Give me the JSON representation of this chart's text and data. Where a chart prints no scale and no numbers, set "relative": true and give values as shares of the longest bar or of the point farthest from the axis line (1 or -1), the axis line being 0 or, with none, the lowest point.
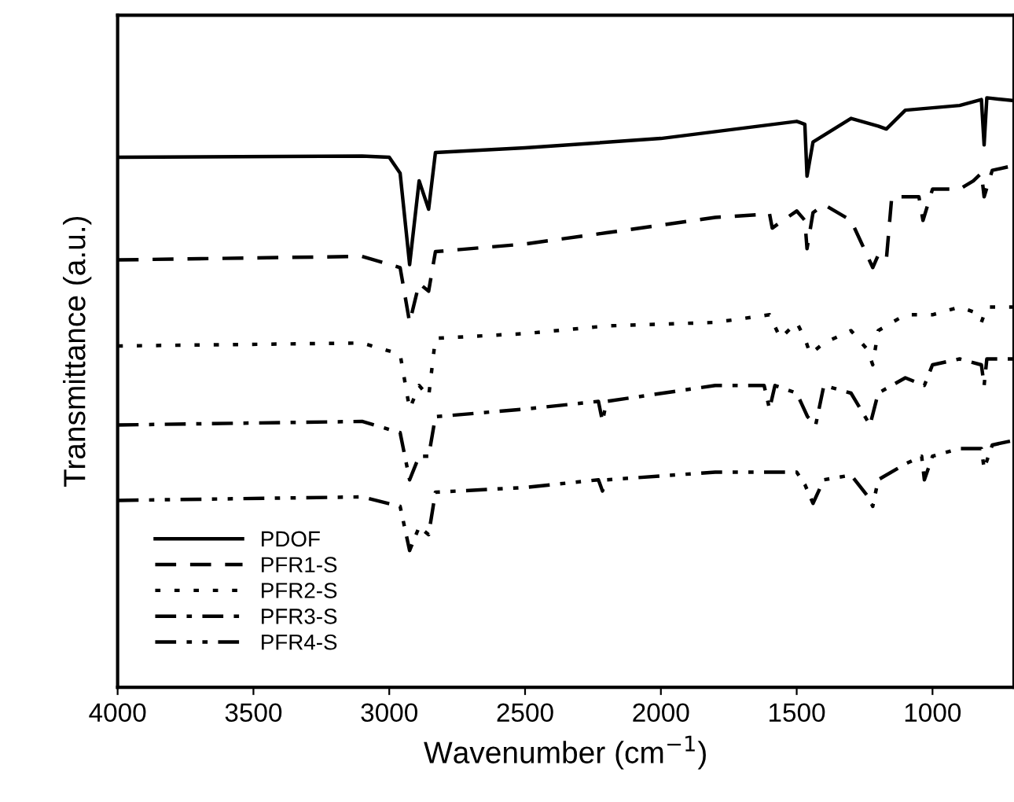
{
  "chart_data": {
    "type": "line",
    "relative": true,
    "xlabel": "Wavenumber (cm$^{−1}$)",
    "ylabel": "Transmittance (a.u.)",
    "xlim": [
      4000,
      700
    ],
    "xticks": [
      4000,
      3500,
      3000,
      2500,
      2000,
      1500,
      1000
    ],
    "tick_labels": "x",
    "grid": false,
    "legend": "bottom left",
    "marker": "none",
    "series": [
      {
        "name": "PDOF",
        "color": "#000000",
        "line_style": "solid",
        "x": [
          4000,
          3100,
          3000,
          2960,
          2925,
          2890,
          2855,
          2830,
          2500,
          2000,
          1500,
          1470,
          1462,
          1440,
          1300,
          1200,
          1170,
          1100,
          900,
          820,
          810,
          800,
          700
        ],
        "values": [
          0.899,
          0.901,
          0.899,
          0.872,
          0.717,
          0.859,
          0.811,
          0.907,
          0.915,
          0.931,
          0.96,
          0.955,
          0.867,
          0.925,
          0.965,
          0.952,
          0.947,
          0.979,
          0.987,
          0.997,
          0.92,
          1.0,
          0.995
        ]
      },
      {
        "name": "PFR1-S",
        "color": "#000000",
        "line_style": "dashed",
        "x": [
          4000,
          3100,
          2960,
          2925,
          2890,
          2855,
          2830,
          2500,
          2200,
          1800,
          1600,
          1590,
          1500,
          1470,
          1462,
          1440,
          1400,
          1300,
          1260,
          1220,
          1200,
          1170,
          1150,
          1050,
          1035,
          1000,
          900,
          850,
          820,
          810,
          780,
          700
        ],
        "values": [
          0.725,
          0.731,
          0.712,
          0.619,
          0.685,
          0.672,
          0.739,
          0.752,
          0.771,
          0.797,
          0.803,
          0.779,
          0.808,
          0.792,
          0.744,
          0.805,
          0.819,
          0.792,
          0.752,
          0.712,
          0.733,
          0.725,
          0.832,
          0.832,
          0.792,
          0.845,
          0.845,
          0.859,
          0.872,
          0.832,
          0.877,
          0.885
        ]
      },
      {
        "name": "PFR2-S",
        "color": "#000000",
        "line_style": "dotted",
        "x": [
          4000,
          3100,
          2960,
          2925,
          2890,
          2855,
          2830,
          2500,
          2200,
          1800,
          1600,
          1560,
          1500,
          1470,
          1450,
          1400,
          1300,
          1240,
          1220,
          1200,
          1100,
          1000,
          900,
          850,
          820,
          800,
          700
        ],
        "values": [
          0.579,
          0.584,
          0.565,
          0.472,
          0.512,
          0.493,
          0.592,
          0.6,
          0.613,
          0.619,
          0.632,
          0.592,
          0.619,
          0.592,
          0.565,
          0.584,
          0.605,
          0.573,
          0.547,
          0.605,
          0.632,
          0.632,
          0.645,
          0.637,
          0.619,
          0.645,
          0.645
        ]
      },
      {
        "name": "PFR3-S",
        "color": "#000000",
        "line_style": "dashdot",
        "x": [
          4000,
          3100,
          2960,
          2925,
          2890,
          2855,
          2830,
          2500,
          2230,
          2215,
          2200,
          1800,
          1620,
          1600,
          1580,
          1500,
          1460,
          1430,
          1400,
          1300,
          1230,
          1200,
          1100,
          1030,
          1000,
          900,
          820,
          810,
          800,
          700
        ],
        "values": [
          0.445,
          0.451,
          0.432,
          0.352,
          0.392,
          0.392,
          0.459,
          0.472,
          0.485,
          0.451,
          0.485,
          0.512,
          0.512,
          0.472,
          0.512,
          0.499,
          0.459,
          0.445,
          0.512,
          0.499,
          0.445,
          0.499,
          0.525,
          0.512,
          0.547,
          0.557,
          0.547,
          0.512,
          0.557,
          0.557
        ]
      },
      {
        "name": "PFR4-S",
        "color": "#000000",
        "line_style": "dashdotdot",
        "x": [
          4000,
          3100,
          2960,
          2925,
          2890,
          2855,
          2830,
          2500,
          2230,
          2215,
          2200,
          1800,
          1500,
          1470,
          1440,
          1400,
          1300,
          1240,
          1220,
          1200,
          1100,
          1040,
          1030,
          1000,
          900,
          820,
          810,
          780,
          700
        ],
        "values": [
          0.317,
          0.323,
          0.307,
          0.232,
          0.272,
          0.259,
          0.331,
          0.339,
          0.352,
          0.333,
          0.352,
          0.365,
          0.365,
          0.344,
          0.312,
          0.352,
          0.36,
          0.325,
          0.307,
          0.352,
          0.379,
          0.392,
          0.352,
          0.392,
          0.405,
          0.405,
          0.371,
          0.411,
          0.419
        ]
      }
    ]
  }
}
